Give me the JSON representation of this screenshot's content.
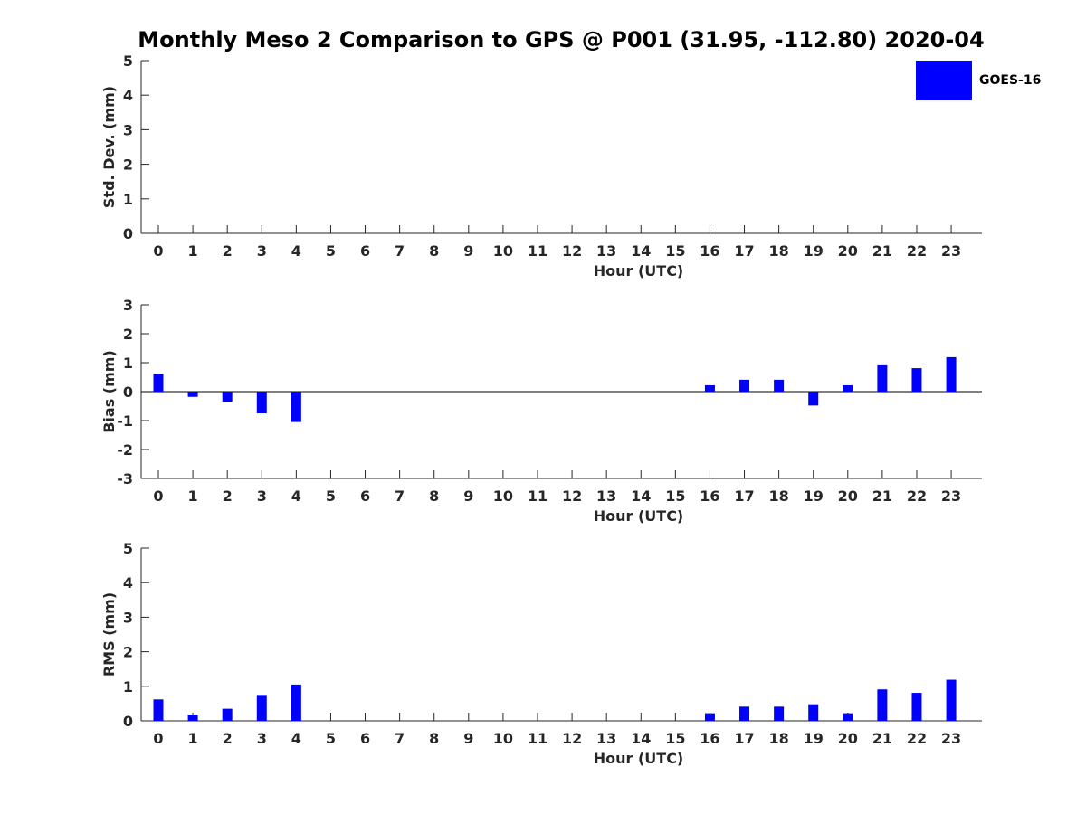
{
  "title": "Monthly Meso 2 Comparison to GPS @ P001 (31.95, -112.80) 2020-04",
  "colors": {
    "series": "#0000ff",
    "axis": "#262626",
    "text": "#262626"
  },
  "chart_data": [
    {
      "type": "bar",
      "name": "std-dev",
      "ylabel": "Std. Dev. (mm)",
      "xlabel": "Hour (UTC)",
      "ylim": [
        0,
        5
      ],
      "yticks": [
        0,
        1,
        2,
        3,
        4,
        5
      ],
      "categories": [
        "0",
        "1",
        "2",
        "3",
        "4",
        "5",
        "6",
        "7",
        "8",
        "9",
        "10",
        "11",
        "12",
        "13",
        "14",
        "15",
        "16",
        "17",
        "18",
        "19",
        "20",
        "21",
        "22",
        "23"
      ],
      "series": [
        {
          "name": "GOES-16",
          "values": [
            0,
            0,
            0,
            0,
            0,
            0,
            0,
            0,
            0,
            0,
            0,
            0,
            0,
            0,
            0,
            0,
            0,
            0,
            0,
            0,
            0,
            0,
            0,
            0
          ]
        }
      ]
    },
    {
      "type": "bar",
      "name": "bias",
      "ylabel": "Bias (mm)",
      "xlabel": "Hour (UTC)",
      "ylim": [
        -3,
        3
      ],
      "yticks": [
        -3,
        -2,
        -1,
        0,
        1,
        2,
        3
      ],
      "zero_line": true,
      "categories": [
        "0",
        "1",
        "2",
        "3",
        "4",
        "5",
        "6",
        "7",
        "8",
        "9",
        "10",
        "11",
        "12",
        "13",
        "14",
        "15",
        "16",
        "17",
        "18",
        "19",
        "20",
        "21",
        "22",
        "23"
      ],
      "series": [
        {
          "name": "GOES-16",
          "values": [
            0.62,
            -0.18,
            -0.35,
            -0.75,
            -1.05,
            0,
            0,
            0,
            0,
            0,
            0,
            0,
            0,
            0,
            0,
            0,
            0.22,
            0.41,
            0.41,
            -0.48,
            0.22,
            0.91,
            0.81,
            1.19
          ]
        }
      ]
    },
    {
      "type": "bar",
      "name": "rms",
      "ylabel": "RMS (mm)",
      "xlabel": "Hour (UTC)",
      "ylim": [
        0,
        5
      ],
      "yticks": [
        0,
        1,
        2,
        3,
        4,
        5
      ],
      "categories": [
        "0",
        "1",
        "2",
        "3",
        "4",
        "5",
        "6",
        "7",
        "8",
        "9",
        "10",
        "11",
        "12",
        "13",
        "14",
        "15",
        "16",
        "17",
        "18",
        "19",
        "20",
        "21",
        "22",
        "23"
      ],
      "series": [
        {
          "name": "GOES-16",
          "values": [
            0.62,
            0.18,
            0.35,
            0.75,
            1.05,
            0,
            0,
            0,
            0,
            0,
            0,
            0,
            0,
            0,
            0,
            0,
            0.22,
            0.41,
            0.41,
            0.48,
            0.22,
            0.91,
            0.81,
            1.19
          ]
        }
      ]
    }
  ],
  "legend": {
    "label": "GOES-16",
    "placement": "top-right"
  }
}
